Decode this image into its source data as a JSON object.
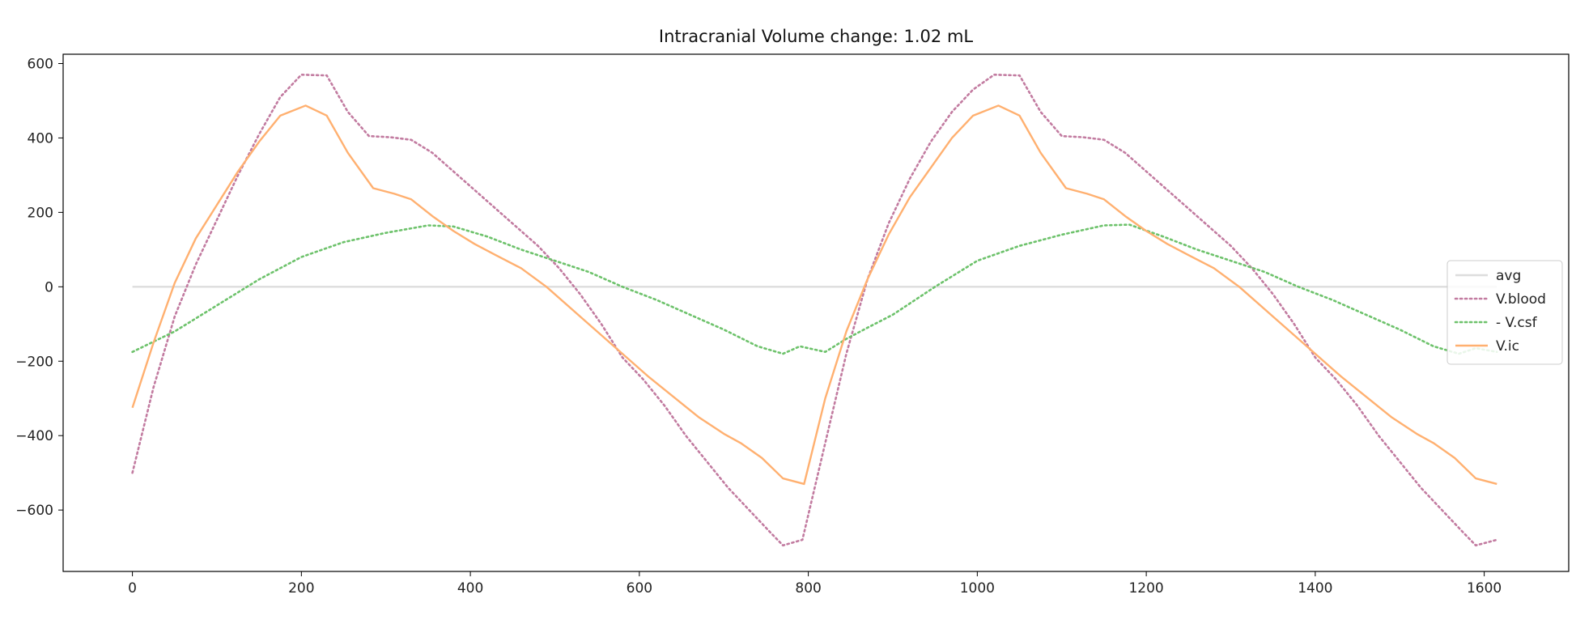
{
  "chart_data": {
    "type": "line",
    "title": "Intracranial Volume change: 1.02 mL",
    "xlabel": "",
    "ylabel": "",
    "xlim": [
      -82,
      1700
    ],
    "ylim": [
      -765,
      625
    ],
    "xticks": [
      0,
      200,
      400,
      600,
      800,
      1000,
      1200,
      1400,
      1600
    ],
    "yticks": [
      -600,
      -400,
      -200,
      0,
      200,
      400,
      600
    ],
    "xtick_labels": [
      "0",
      "200",
      "400",
      "600",
      "800",
      "1000",
      "1200",
      "1400",
      "1600"
    ],
    "ytick_labels": [
      "−600",
      "−400",
      "−200",
      "0",
      "200",
      "400",
      "600"
    ],
    "grid": false,
    "legend_position": "center-right",
    "series": [
      {
        "name": "avg",
        "color": "#dddddd",
        "style": "solid",
        "x": [
          0,
          1615
        ],
        "y": [
          0,
          0
        ]
      },
      {
        "name": "V.blood",
        "color": "#c27ba0",
        "style": "dotted",
        "x": [
          0,
          25,
          50,
          75,
          100,
          125,
          150,
          175,
          200,
          230,
          255,
          280,
          305,
          330,
          355,
          380,
          405,
          430,
          455,
          480,
          505,
          530,
          555,
          580,
          605,
          630,
          655,
          680,
          705,
          730,
          755,
          770,
          793,
          820,
          845,
          870,
          895,
          920,
          945,
          970,
          995,
          1020,
          1050,
          1075,
          1100,
          1125,
          1150,
          1175,
          1200,
          1225,
          1250,
          1275,
          1300,
          1325,
          1350,
          1375,
          1400,
          1425,
          1450,
          1475,
          1500,
          1525,
          1550,
          1575,
          1590,
          1615
        ],
        "y": [
          -500,
          -270,
          -80,
          60,
          180,
          300,
          410,
          510,
          570,
          568,
          470,
          405,
          402,
          395,
          360,
          310,
          260,
          210,
          160,
          110,
          50,
          -20,
          -100,
          -190,
          -250,
          -320,
          -400,
          -470,
          -540,
          -600,
          -660,
          -695,
          -680,
          -420,
          -180,
          20,
          170,
          290,
          390,
          470,
          530,
          570,
          568,
          470,
          405,
          402,
          395,
          360,
          310,
          260,
          210,
          160,
          110,
          50,
          -20,
          -100,
          -190,
          -250,
          -320,
          -400,
          -470,
          -540,
          -600,
          -660,
          -695,
          -680
        ]
      },
      {
        "name": "- V.csf",
        "color": "#6dc26b",
        "style": "dotted",
        "x": [
          0,
          50,
          100,
          150,
          200,
          250,
          300,
          350,
          380,
          420,
          460,
          500,
          540,
          580,
          620,
          660,
          700,
          740,
          770,
          790,
          820,
          845,
          870,
          900,
          950,
          1000,
          1050,
          1100,
          1150,
          1180,
          1220,
          1260,
          1300,
          1340,
          1380,
          1420,
          1460,
          1500,
          1540,
          1570,
          1590,
          1615
        ],
        "y": [
          -175,
          -120,
          -50,
          20,
          80,
          120,
          145,
          165,
          162,
          135,
          100,
          70,
          40,
          0,
          -35,
          -75,
          -115,
          -160,
          -180,
          -160,
          -175,
          -140,
          -110,
          -75,
          0,
          70,
          110,
          140,
          165,
          167,
          135,
          100,
          70,
          40,
          0,
          -35,
          -75,
          -115,
          -160,
          -180,
          -165,
          -175
        ]
      },
      {
        "name": "V.ic",
        "color": "#ffb070",
        "style": "solid",
        "x": [
          0,
          25,
          50,
          75,
          100,
          125,
          150,
          175,
          205,
          230,
          255,
          285,
          310,
          330,
          355,
          380,
          405,
          430,
          460,
          490,
          530,
          570,
          610,
          640,
          670,
          700,
          720,
          745,
          770,
          795,
          820,
          845,
          870,
          895,
          920,
          945,
          970,
          995,
          1025,
          1050,
          1075,
          1105,
          1130,
          1150,
          1175,
          1200,
          1225,
          1250,
          1280,
          1310,
          1350,
          1390,
          1430,
          1460,
          1490,
          1520,
          1540,
          1565,
          1590,
          1615
        ],
        "y": [
          -325,
          -150,
          10,
          130,
          220,
          310,
          390,
          460,
          487,
          460,
          360,
          265,
          250,
          235,
          190,
          150,
          115,
          85,
          50,
          0,
          -80,
          -160,
          -240,
          -295,
          -350,
          -395,
          -420,
          -460,
          -515,
          -530,
          -300,
          -120,
          20,
          140,
          240,
          320,
          400,
          460,
          487,
          460,
          360,
          265,
          250,
          235,
          190,
          150,
          115,
          85,
          50,
          0,
          -80,
          -160,
          -240,
          -295,
          -350,
          -395,
          -420,
          -460,
          -515,
          -530
        ]
      }
    ]
  }
}
